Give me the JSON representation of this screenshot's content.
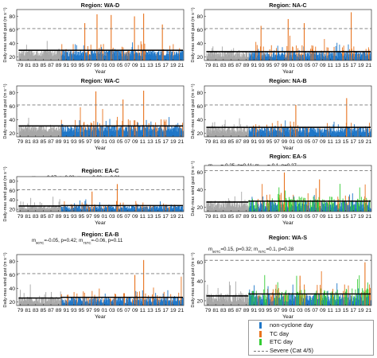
{
  "colors": {
    "pre": "#a8a8a8",
    "noncyclone": "#1f77c8",
    "tc": "#e8731e",
    "etc": "#33cc33",
    "trend": "#000000",
    "severe": "#7a7a7a"
  },
  "legend": {
    "items": [
      {
        "label": "non-cyclone day",
        "color": "#1f77c8",
        "style": "bar"
      },
      {
        "label": "TC day",
        "color": "#e8731e",
        "style": "bar"
      },
      {
        "label": "ETC day",
        "color": "#33cc33",
        "style": "bar"
      },
      {
        "label": "Severe (Cat 4/5)",
        "color": "#7a7a7a",
        "style": "dashed"
      }
    ]
  },
  "chart_data": [
    {
      "type": "bar",
      "title": "Region: WA-D",
      "ylabel": "Daily-max wind gust (m s⁻¹)",
      "xlabel": "Year",
      "stats": [
        "m90TC=0.04, p=0.62; m75TC=0.09, p=0.09"
      ],
      "years": [
        "79",
        "81",
        "83",
        "85",
        "87",
        "89",
        "91",
        "93",
        "95",
        "97",
        "99",
        "01",
        "03",
        "05",
        "07",
        "09",
        "11",
        "13",
        "15",
        "17",
        "19",
        "21"
      ],
      "ylim": [
        15,
        90
      ],
      "yticks": [
        20,
        40,
        60,
        80
      ],
      "severe": 62,
      "split_year": 1990,
      "trend": [
        {
          "from": 1979,
          "to": 1990,
          "y": 30
        },
        {
          "from": 1990,
          "to": 2022,
          "y": 30
        }
      ],
      "series_present": [
        "pre",
        "noncyclone",
        "tc"
      ],
      "tc_peaks": [
        {
          "x": 1999.4,
          "y": 83
        },
        {
          "x": 2003.1,
          "y": 82
        },
        {
          "x": 2009.2,
          "y": 80
        },
        {
          "x": 2011.6,
          "y": 84
        },
        {
          "x": 1996.2,
          "y": 70
        },
        {
          "x": 2016.5,
          "y": 68
        }
      ]
    },
    {
      "type": "bar",
      "title": "Region: NA-C",
      "ylabel": "",
      "xlabel": "Year",
      "stats": [
        "m90TC=0.13, p=0.11; m75TC=0.09, p=0.08"
      ],
      "years": [
        "79",
        "81",
        "83",
        "85",
        "87",
        "89",
        "91",
        "93",
        "95",
        "97",
        "99",
        "01",
        "03",
        "05",
        "07",
        "09",
        "11",
        "13",
        "15",
        "17",
        "19",
        "21"
      ],
      "ylim": [
        15,
        90
      ],
      "yticks": [
        20,
        40,
        60,
        80
      ],
      "severe": 62,
      "split_year": 1990,
      "trend": [
        {
          "from": 1979,
          "to": 1990,
          "y": 28
        },
        {
          "from": 1990,
          "to": 2022,
          "y": 28
        }
      ],
      "series_present": [
        "pre",
        "noncyclone",
        "tc"
      ],
      "tc_peaks": [
        {
          "x": 2000.3,
          "y": 76
        },
        {
          "x": 2016.8,
          "y": 86
        },
        {
          "x": 2004.5,
          "y": 70
        },
        {
          "x": 1993.2,
          "y": 66
        }
      ]
    },
    {
      "type": "bar",
      "title": "Region: WA-C",
      "ylabel": "Daily-max wind gust (m s⁻¹)",
      "xlabel": "Year",
      "stats": [
        "m90TC=0.06, p=0.48; m75TC=0.08, p=0.09"
      ],
      "years": [
        "79",
        "81",
        "83",
        "85",
        "87",
        "89",
        "91",
        "93",
        "95",
        "97",
        "99",
        "01",
        "03",
        "05",
        "07",
        "09",
        "11",
        "13",
        "15",
        "17",
        "19",
        "21"
      ],
      "ylim": [
        15,
        90
      ],
      "yticks": [
        20,
        40,
        60,
        80
      ],
      "severe": 62,
      "split_year": 1990,
      "trend": [
        {
          "from": 1979,
          "to": 1990,
          "y": 31
        },
        {
          "from": 1990,
          "to": 2022,
          "y": 31
        }
      ],
      "series_present": [
        "pre",
        "noncyclone",
        "tc"
      ],
      "tc_peaks": [
        {
          "x": 1999.1,
          "y": 82
        },
        {
          "x": 2011.6,
          "y": 83
        },
        {
          "x": 2006.2,
          "y": 70
        }
      ]
    },
    {
      "type": "bar",
      "title": "Region: NA-B",
      "ylabel": "",
      "xlabel": "Year",
      "stats": [
        "m90TC=-0.09, p=0.19; m75TC=-0.06, p=0.2"
      ],
      "years": [
        "79",
        "81",
        "83",
        "85",
        "87",
        "89",
        "91",
        "93",
        "95",
        "97",
        "99",
        "01",
        "03",
        "05",
        "07",
        "09",
        "11",
        "13",
        "15",
        "17",
        "19",
        "21"
      ],
      "ylim": [
        15,
        90
      ],
      "yticks": [
        20,
        40,
        60,
        80
      ],
      "severe": 62,
      "split_year": 1990,
      "trend": [
        {
          "from": 1979,
          "to": 1990,
          "y": 29
        },
        {
          "from": 1990,
          "to": 2022,
          "y": 29
        }
      ],
      "series_present": [
        "pre",
        "noncyclone",
        "tc"
      ],
      "tc_peaks": [
        {
          "x": 2015.6,
          "y": 72
        },
        {
          "x": 2002.3,
          "y": 62
        }
      ]
    },
    {
      "type": "bar",
      "title": "Region: EA-C",
      "ylabel": "Daily-max wind gust (m s⁻¹)",
      "xlabel": "Year",
      "stats": [
        "m90TC=0.07, p=0.33; m75TC=0.06, p=0.21"
      ],
      "years": [
        "79",
        "81",
        "83",
        "85",
        "87",
        "89",
        "91",
        "93",
        "95",
        "97",
        "99",
        "01",
        "03",
        "05",
        "07",
        "09",
        "11",
        "13",
        "15",
        "17",
        "19",
        "21"
      ],
      "ylim": [
        15,
        90
      ],
      "yticks": [
        20,
        40,
        60,
        80
      ],
      "severe": 62,
      "split_year": 1990,
      "trend": [
        {
          "from": 1979,
          "to": 1990,
          "y": 27
        },
        {
          "from": 1990,
          "to": 2022,
          "y": 28
        }
      ],
      "series_present": [
        "pre",
        "noncyclone",
        "tc"
      ],
      "tc_peaks": [
        {
          "x": 2004.7,
          "y": 74
        },
        {
          "x": 1998.1,
          "y": 58
        }
      ]
    },
    {
      "type": "bar",
      "title": "Region: EA-S",
      "ylabel": "",
      "xlabel": "Year",
      "stats": [
        "m90TC=-0.25, p=0.11; m75TC=-0.1, p=0.27",
        "m90ETC=-0.01, p=0.05; m75ETC=0.12, p=0.06"
      ],
      "years": [
        "79",
        "81",
        "83",
        "85",
        "87",
        "89",
        "91",
        "93",
        "95",
        "97",
        "99",
        "01",
        "03",
        "05",
        "07",
        "09",
        "11",
        "13",
        "15",
        "17",
        "19",
        "21"
      ],
      "ylim": [
        15,
        68
      ],
      "yticks": [
        20,
        40,
        60
      ],
      "severe": 62,
      "split_year": 1990,
      "trend": [
        {
          "from": 1979,
          "to": 1990,
          "y": 26
        },
        {
          "from": 1990,
          "to": 2022,
          "y": 27
        }
      ],
      "series_present": [
        "pre",
        "noncyclone",
        "tc",
        "etc"
      ],
      "tc_peaks": [
        {
          "x": 1999.3,
          "y": 60
        },
        {
          "x": 2008.5,
          "y": 52
        }
      ]
    },
    {
      "type": "bar",
      "title": "Region: EA-B",
      "ylabel": "Daily-max wind gust (m s⁻¹)",
      "xlabel": "Year",
      "stats": [
        "m90TC=-0.05, p=0.42; m75TC=-0.06, p=0.11"
      ],
      "years": [
        "79",
        "81",
        "83",
        "85",
        "87",
        "89",
        "91",
        "93",
        "95",
        "97",
        "99",
        "01",
        "03",
        "05",
        "07",
        "09",
        "11",
        "13",
        "15",
        "17",
        "19",
        "21"
      ],
      "ylim": [
        15,
        90
      ],
      "yticks": [
        20,
        40,
        60,
        80
      ],
      "severe": 62,
      "split_year": 1990,
      "trend": [
        {
          "from": 1979,
          "to": 1990,
          "y": 26
        },
        {
          "from": 1990,
          "to": 2022,
          "y": 27
        }
      ],
      "series_present": [
        "pre",
        "noncyclone",
        "tc"
      ],
      "tc_peaks": [
        {
          "x": 2011.6,
          "y": 82
        },
        {
          "x": 2009.3,
          "y": 60
        }
      ]
    },
    {
      "type": "bar",
      "title": "Region: WA-S",
      "ylabel": "",
      "xlabel": "Year",
      "stats": [
        "m90TC=0.15, p=0.32; m75TC=0.1, p=0.28",
        "m90ETC=0, p=0.98; m75ETC=-0.01, p=0.6"
      ],
      "years": [
        "79",
        "81",
        "83",
        "85",
        "87",
        "89",
        "91",
        "93",
        "95",
        "97",
        "99",
        "01",
        "03",
        "05",
        "07",
        "09",
        "11",
        "13",
        "15",
        "17",
        "19",
        "21"
      ],
      "ylim": [
        15,
        68
      ],
      "yticks": [
        20,
        40,
        60
      ],
      "severe": 62,
      "split_year": 1990,
      "trend": [
        {
          "from": 1979,
          "to": 1990,
          "y": 25
        },
        {
          "from": 1990,
          "to": 2022,
          "y": 27
        }
      ],
      "series_present": [
        "pre",
        "noncyclone",
        "tc",
        "etc"
      ],
      "tc_peaks": [
        {
          "x": 2020.4,
          "y": 60
        },
        {
          "x": 2003.4,
          "y": 46
        }
      ]
    }
  ]
}
